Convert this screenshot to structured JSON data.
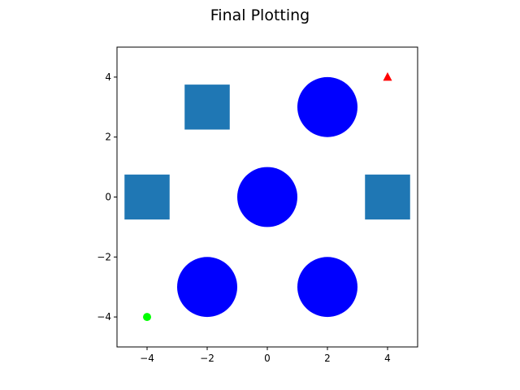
{
  "chart_data": {
    "type": "scatter",
    "title": "Final Plotting",
    "xlabel": "",
    "ylabel": "",
    "xlim": [
      -5,
      5
    ],
    "ylim": [
      -5,
      5
    ],
    "aspect": "equal",
    "grid": false,
    "xticks": [
      -4,
      -2,
      0,
      2,
      4
    ],
    "yticks": [
      -4,
      -2,
      0,
      2,
      4
    ],
    "xtick_labels": [
      "−4",
      "−2",
      "0",
      "2",
      "4"
    ],
    "ytick_labels": [
      "−4",
      "−2",
      "0",
      "2",
      "4"
    ],
    "circles": [
      {
        "x": 2,
        "y": 3,
        "radius": 1,
        "color": "#0000ff"
      },
      {
        "x": 0,
        "y": 0,
        "radius": 1,
        "color": "#0000ff"
      },
      {
        "x": -2,
        "y": -3,
        "radius": 1,
        "color": "#0000ff"
      },
      {
        "x": 2,
        "y": -3,
        "radius": 1,
        "color": "#0000ff"
      }
    ],
    "squares": [
      {
        "x": -2,
        "y": 3,
        "half_side": 0.75,
        "color": "#1f77b4"
      },
      {
        "x": -4,
        "y": 0,
        "half_side": 0.75,
        "color": "#1f77b4"
      },
      {
        "x": 4,
        "y": 0,
        "half_side": 0.75,
        "color": "#1f77b4"
      }
    ],
    "start_marker": {
      "x": -4,
      "y": -4,
      "shape": "circle",
      "color": "#00ff00"
    },
    "goal_marker": {
      "x": 4,
      "y": 4,
      "shape": "triangle",
      "color": "#ff0000"
    }
  }
}
